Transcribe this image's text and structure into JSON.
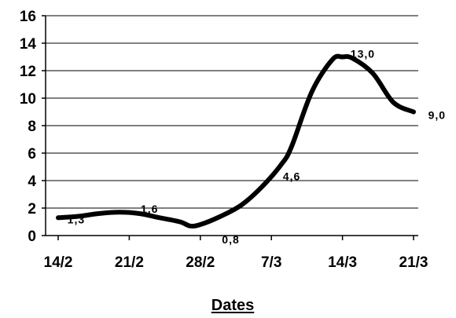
{
  "chart_data": {
    "type": "line",
    "title": "",
    "xlabel": "Dates",
    "ylabel": "",
    "ylim": [
      0,
      16
    ],
    "yticks": [
      "0",
      "2",
      "4",
      "6",
      "8",
      "10",
      "12",
      "14",
      "16"
    ],
    "xticks": [
      "14/2",
      "21/2",
      "28/2",
      "7/3",
      "14/3",
      "21/3"
    ],
    "grid": "horizontal",
    "legend": "none",
    "line_color": "#000000",
    "series": [
      {
        "x": [
          "14/2",
          "16/2",
          "18/2",
          "20/2",
          "22/2",
          "24/2",
          "26/2",
          "27/2",
          "28/2",
          "2/3",
          "4/3",
          "6/3",
          "8/3",
          "9/3",
          "11/3",
          "13/3",
          "14/3",
          "15/3",
          "17/3",
          "19/3",
          "21/3"
        ],
        "values": [
          1.3,
          1.4,
          1.6,
          1.7,
          1.6,
          1.3,
          1.0,
          0.7,
          0.8,
          1.4,
          2.2,
          3.5,
          5.2,
          6.5,
          10.5,
          12.8,
          13.0,
          12.9,
          11.8,
          9.7,
          9.0
        ]
      }
    ],
    "data_labels": [
      {
        "x": "15/2",
        "y": 1.3,
        "text": "1,3"
      },
      {
        "x": "23/2",
        "y": 1.6,
        "text": "1,6"
      },
      {
        "x": "3/3",
        "y": 0.8,
        "text": "0,8"
      },
      {
        "x": "9/3",
        "y": 4.6,
        "text": "4,6"
      },
      {
        "x": "16/3",
        "y": 13.0,
        "text": "13,0"
      },
      {
        "x": "23/3",
        "y": 9.0,
        "text": "9,0"
      }
    ]
  }
}
